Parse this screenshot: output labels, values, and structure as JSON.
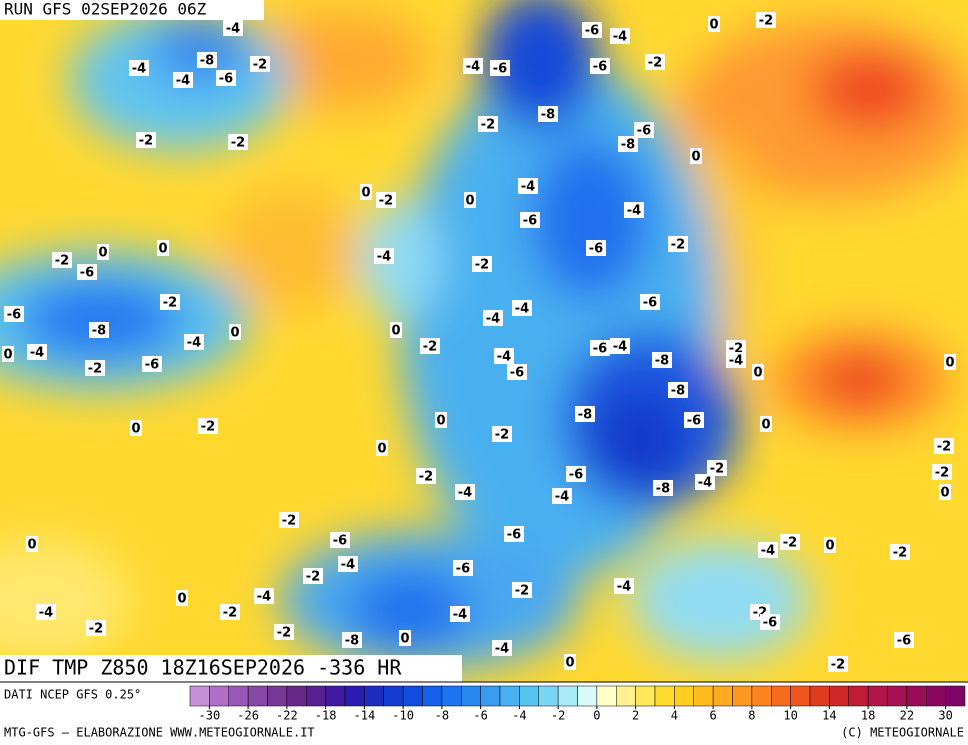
{
  "header": {
    "run": "RUN GFS 02SEP2026 06Z"
  },
  "map": {
    "title": "DIF TMP Z850 18Z16SEP2026 -336 HR",
    "contour_labels": [
      -4,
      0,
      -2,
      -6,
      -4,
      -4,
      -8,
      -2,
      -4,
      -6,
      -4,
      -6,
      -6,
      -2,
      -8,
      -2,
      -6,
      -2,
      -2,
      -8,
      0,
      0,
      -2,
      0,
      -4,
      -4,
      -6,
      0,
      -2,
      0,
      -6,
      -4,
      -6,
      -2,
      -2,
      -2,
      -6,
      -4,
      -6,
      -4,
      -8,
      0,
      0,
      -4,
      0,
      -4,
      -2,
      -6,
      -4,
      -2,
      -4,
      -8,
      -4,
      -2,
      -6,
      -6,
      0,
      0,
      -8,
      0,
      -2,
      0,
      -8,
      -6,
      -2,
      0,
      0,
      -2,
      -2,
      -6,
      -2,
      -2,
      -4,
      -4,
      -8,
      -4,
      0,
      -2,
      -6,
      -6,
      0,
      -2,
      0,
      -4,
      -2,
      -4,
      -2,
      -6,
      -4,
      -2,
      0,
      -4,
      -2,
      -4,
      -4,
      -2,
      -2,
      -2,
      -6,
      -8,
      0,
      -6,
      -4,
      0,
      -2
    ]
  },
  "footer": {
    "source": "DATI NCEP GFS 0.25°",
    "credit": "MTG-GFS – ELABORAZIONE WWW.METEOGIORNALE.IT",
    "copyright": "(C) METEOGIORNALE"
  },
  "colorbar": {
    "ticks": [
      -30,
      -26,
      -22,
      -18,
      -14,
      -10,
      -8,
      -6,
      -4,
      -2,
      0,
      2,
      4,
      6,
      8,
      10,
      14,
      18,
      22,
      30
    ],
    "colors": [
      "#c890d8",
      "#b070c8",
      "#9a58b8",
      "#8848a8",
      "#783898",
      "#682888",
      "#582090",
      "#401aa0",
      "#2a1cb0",
      "#1e2cc0",
      "#143cd0",
      "#104ce0",
      "#1460e8",
      "#1c74f0",
      "#2888f0",
      "#389cf0",
      "#48b0f0",
      "#58c4f0",
      "#78d8f4",
      "#a8ecf8",
      "#d8fafa",
      "#ffffc8",
      "#fff090",
      "#ffe858",
      "#ffdc30",
      "#ffcc20",
      "#ffbc20",
      "#ffaa20",
      "#ff9820",
      "#ff8420",
      "#f86c20",
      "#f05420",
      "#e03c20",
      "#d02828",
      "#c01c38",
      "#b01448",
      "#a41050",
      "#980c58",
      "#8c0860",
      "#800468"
    ]
  }
}
